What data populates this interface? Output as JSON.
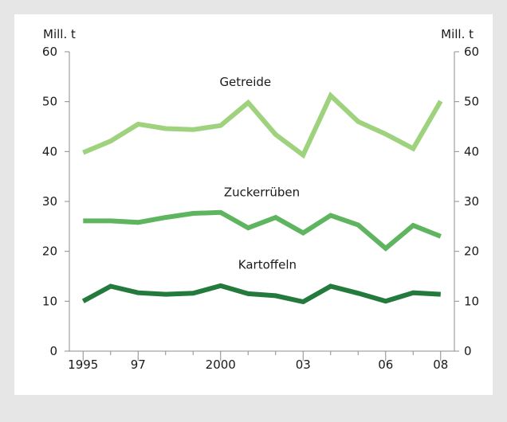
{
  "chart_data": {
    "type": "line",
    "x": [
      1995,
      1996,
      1997,
      1998,
      1999,
      2000,
      2001,
      2002,
      2003,
      2004,
      2005,
      2006,
      2007,
      2008
    ],
    "x_tick_values": [
      1995,
      1997,
      2000,
      2003,
      2006,
      2008
    ],
    "x_tick_labels": [
      "1995",
      "97",
      "2000",
      "03",
      "06",
      "08"
    ],
    "y_ticks": [
      0,
      10,
      20,
      30,
      40,
      50,
      60
    ],
    "ylim": [
      0,
      60
    ],
    "ylabel_left": "Mill. t",
    "ylabel_right": "Mill. t",
    "grid": false,
    "series": [
      {
        "name": "Getreide",
        "color": "#9ed27d",
        "values": [
          39.8,
          42.1,
          45.5,
          44.6,
          44.4,
          45.2,
          49.8,
          43.4,
          39.3,
          51.2,
          46.0,
          43.5,
          40.6,
          50.1
        ]
      },
      {
        "name": "Zuckerrüben",
        "color": "#5fb55f",
        "values": [
          26.1,
          26.1,
          25.8,
          26.8,
          27.6,
          27.8,
          24.7,
          26.8,
          23.7,
          27.2,
          25.3,
          20.6,
          25.2,
          23.0
        ]
      },
      {
        "name": "Kartoffeln",
        "color": "#237a3c",
        "values": [
          10.0,
          13.0,
          11.7,
          11.4,
          11.6,
          13.1,
          11.5,
          11.1,
          9.9,
          13.0,
          11.6,
          10.0,
          11.7,
          11.4
        ]
      }
    ]
  }
}
